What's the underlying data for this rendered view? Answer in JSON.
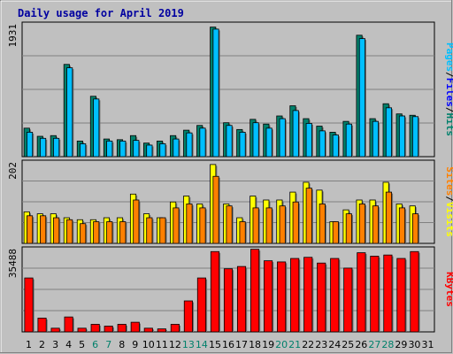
{
  "chart_data": {
    "type": "bar",
    "title": "Daily usage for April 2019",
    "x": [
      "1",
      "2",
      "3",
      "4",
      "5",
      "6",
      "7",
      "8",
      "9",
      "10",
      "11",
      "12",
      "13",
      "14",
      "15",
      "16",
      "17",
      "18",
      "19",
      "20",
      "21",
      "22",
      "23",
      "24",
      "25",
      "26",
      "27",
      "28",
      "29",
      "30",
      "31"
    ],
    "weekend_days": [
      "6",
      "7",
      "13",
      "14",
      "20",
      "21",
      "27",
      "28"
    ],
    "colors": {
      "hits": "#00806b",
      "files": "#00bfff",
      "visits": "#ffff00",
      "sites": "#ff8000",
      "kbytes": "#ff0000",
      "weekend_label": "#00806b",
      "weekday_label": "#000000",
      "title": "#0000a0"
    },
    "panels": [
      {
        "name": "pages-files-hits",
        "ymax_label": "1931",
        "ymax": 1931,
        "legend": [
          "Pages",
          "/",
          "Files",
          "/",
          "Hits"
        ],
        "legend_colors": [
          "#00bfff",
          "#000000",
          "#0000ff",
          "#000000",
          "#00806b"
        ],
        "series": [
          {
            "key": "hits",
            "values": [
              420,
              300,
              310,
              1360,
              230,
              890,
              260,
              250,
              310,
              200,
              230,
              310,
              390,
              460,
              1910,
              500,
              400,
              550,
              480,
              600,
              750,
              560,
              450,
              360,
              520,
              1790,
              560,
              780,
              630,
              610,
              0
            ]
          },
          {
            "key": "files",
            "values": [
              360,
              270,
              270,
              1310,
              190,
              850,
              230,
              230,
              240,
              170,
              190,
              260,
              350,
              420,
              1880,
              460,
              360,
              500,
              420,
              560,
              680,
              490,
              380,
              320,
              480,
              1740,
              520,
              720,
              600,
              590,
              0
            ]
          }
        ]
      },
      {
        "name": "sites-visits",
        "ymax_label": "202",
        "ymax": 202,
        "legend": [
          "Sites",
          "/",
          "Visits"
        ],
        "legend_colors": [
          "#ff8000",
          "#000000",
          "#ffff00"
        ],
        "series": [
          {
            "key": "visits",
            "values": [
              80,
              75,
              75,
              65,
              60,
              60,
              65,
              65,
              125,
              75,
              65,
              105,
              120,
              100,
              200,
              100,
              65,
              120,
              110,
              110,
              130,
              155,
              135,
              55,
              85,
              110,
              110,
              155,
              100,
              95,
              0
            ]
          },
          {
            "key": "sites",
            "values": [
              70,
              70,
              65,
              60,
              50,
              55,
              55,
              55,
              110,
              65,
              65,
              90,
              100,
              90,
              170,
              95,
              55,
              90,
              90,
              95,
              105,
              140,
              100,
              55,
              75,
              100,
              95,
              130,
              90,
              75,
              0
            ]
          }
        ]
      },
      {
        "name": "kbytes",
        "ymax_label": "35488",
        "ymax": 35488,
        "legend": [
          "KBytes"
        ],
        "legend_colors": [
          "#ff0000"
        ],
        "series": [
          {
            "key": "kbytes",
            "values": [
              23500,
              6000,
              1600,
              6500,
              1600,
              3300,
              2500,
              3300,
              4200,
              1600,
              1300,
              3300,
              13500,
              23500,
              35000,
              27500,
              28500,
              36000,
              31000,
              30500,
              32000,
              32500,
              30000,
              32000,
              27800,
              34500,
              33000,
              33500,
              32000,
              35000,
              0
            ]
          }
        ]
      }
    ]
  }
}
